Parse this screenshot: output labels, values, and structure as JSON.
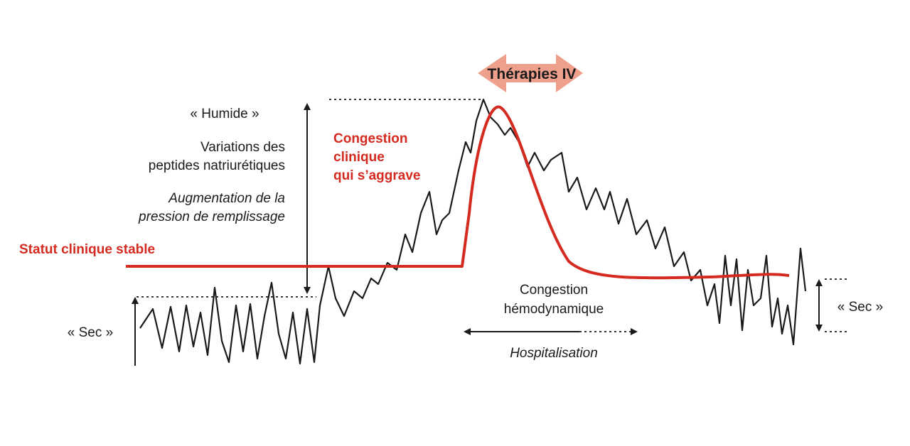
{
  "labels": {
    "therapies": "Thérapies IV",
    "humide": "« Humide »",
    "variations": [
      "Variations des",
      "peptides natriurétiques"
    ],
    "augmentation": [
      "Augmentation de la",
      "pression de remplissage"
    ],
    "congestion_clinique": [
      "Congestion",
      "clinique",
      "qui s’aggrave"
    ],
    "statut": "Statut clinique stable",
    "sec_left": "« Sec »",
    "sec_right": "« Sec »",
    "congestion_hemo": [
      "Congestion",
      "hémodynamique"
    ],
    "hospitalisation": "Hospitalisation"
  }
}
